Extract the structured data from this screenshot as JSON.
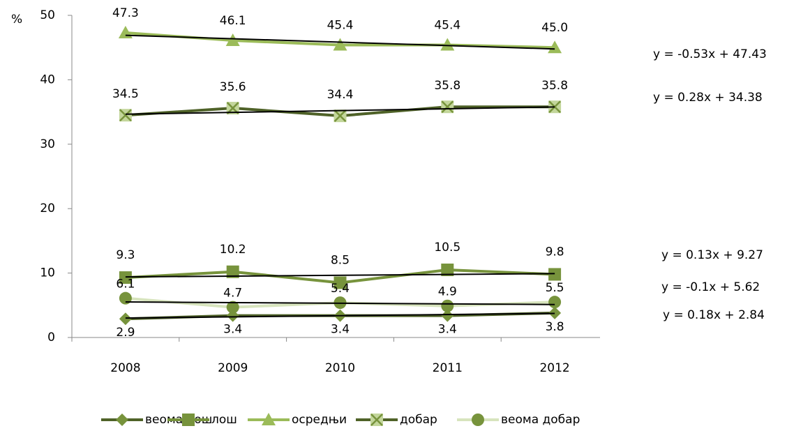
{
  "chart_data": {
    "type": "line",
    "y_label": "%",
    "categories": [
      "2008",
      "2009",
      "2010",
      "2011",
      "2012"
    ],
    "ylim": [
      0,
      50
    ],
    "yticks": [
      0,
      10,
      20,
      30,
      40,
      50
    ],
    "series": [
      {
        "name": "веома лош",
        "color": "#4f6228",
        "values": [
          2.9,
          3.4,
          3.4,
          3.4,
          3.8
        ],
        "trend": {
          "equation": "y = 0.18x + 2.84",
          "slope": 0.18,
          "intercept": 2.84
        }
      },
      {
        "name": "лош",
        "color": "#77933c",
        "values": [
          9.3,
          10.2,
          8.5,
          10.5,
          9.8
        ],
        "trend": {
          "equation": "y = 0.13x + 9.27",
          "slope": 0.13,
          "intercept": 9.27
        }
      },
      {
        "name": "осредњи",
        "color": "#9bbb59",
        "values": [
          47.3,
          46.1,
          45.4,
          45.4,
          45.0
        ],
        "value_labels": [
          "47.3",
          "46.1",
          "45.4",
          "45.4",
          "45.0"
        ],
        "trend": {
          "equation": "y = -0.53x + 47.43",
          "slope": -0.53,
          "intercept": 47.43
        }
      },
      {
        "name": "добар",
        "color": "#4f6228",
        "values": [
          34.5,
          35.6,
          34.4,
          35.8,
          35.8
        ],
        "trend": {
          "equation": "y = 0.28x + 34.38",
          "slope": 0.28,
          "intercept": 34.38
        }
      },
      {
        "name": "веома добар",
        "color": "#d7e4bd",
        "values": [
          6.1,
          4.7,
          5.4,
          4.9,
          5.5
        ],
        "trend": {
          "equation": "y = -0.1x + 5.62",
          "slope": -0.1,
          "intercept": 5.62
        }
      }
    ]
  }
}
